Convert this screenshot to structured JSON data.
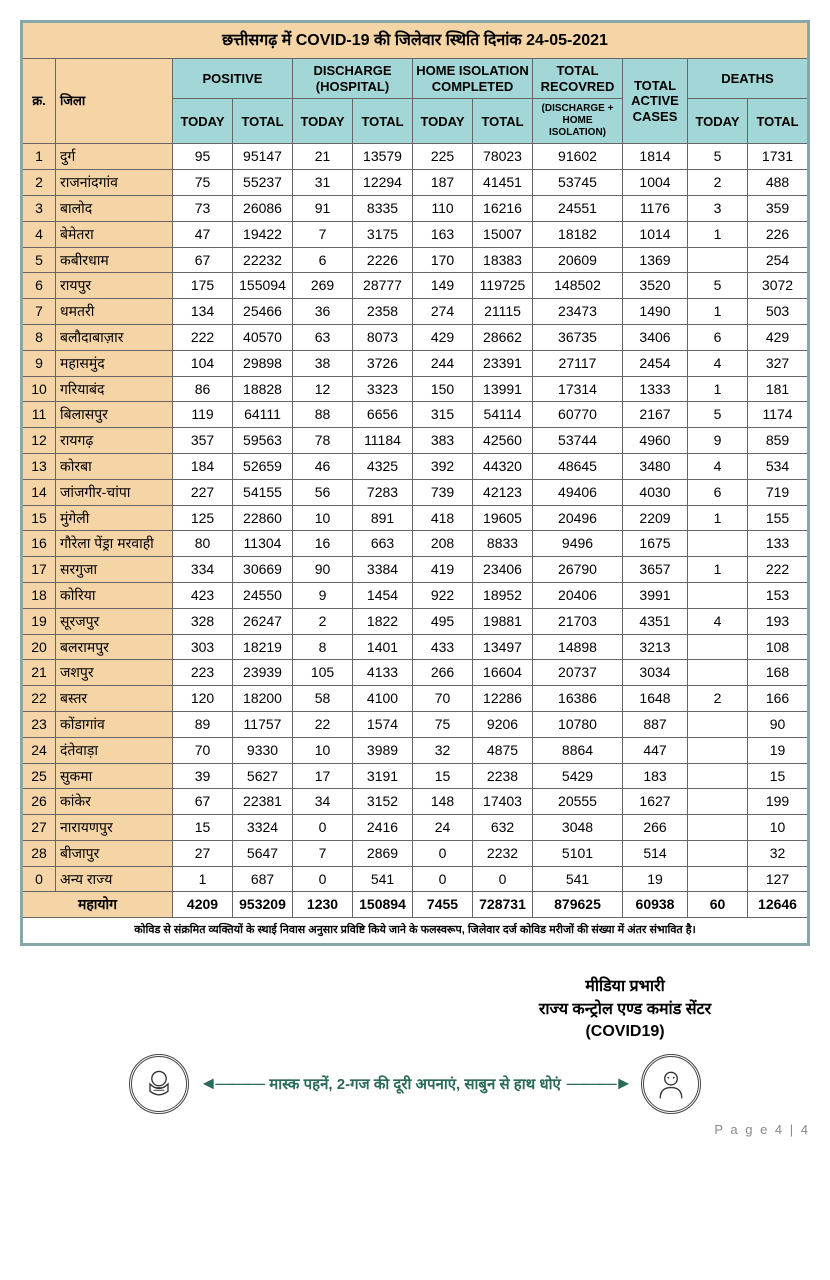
{
  "title": "छत्तीसगढ़ में COVID-19 की जिलेवार स्थिति दिनांक 24-05-2021",
  "headers": {
    "sn": "क्र.",
    "district": "जिला",
    "positive": "POSITIVE",
    "discharge": "DISCHARGE (HOSPITAL)",
    "homeiso": "HOME ISOLATION COMPLETED",
    "totrec": "TOTAL RECOVRED",
    "totrec_sub": "(DISCHARGE + HOME ISOLATION)",
    "active": "TOTAL ACTIVE CASES",
    "deaths": "DEATHS",
    "today": "TODAY",
    "total": "TOTAL"
  },
  "rows": [
    {
      "sn": "1",
      "dist": "दुर्ग",
      "pt": "95",
      "ptt": "95147",
      "dt": "21",
      "dtt": "13579",
      "ht": "225",
      "htt": "78023",
      "rec": "91602",
      "act": "1814",
      "det": "5",
      "dett": "1731"
    },
    {
      "sn": "2",
      "dist": "राजनांदगांव",
      "pt": "75",
      "ptt": "55237",
      "dt": "31",
      "dtt": "12294",
      "ht": "187",
      "htt": "41451",
      "rec": "53745",
      "act": "1004",
      "det": "2",
      "dett": "488"
    },
    {
      "sn": "3",
      "dist": "बालोद",
      "pt": "73",
      "ptt": "26086",
      "dt": "91",
      "dtt": "8335",
      "ht": "110",
      "htt": "16216",
      "rec": "24551",
      "act": "1176",
      "det": "3",
      "dett": "359"
    },
    {
      "sn": "4",
      "dist": "बेमेतरा",
      "pt": "47",
      "ptt": "19422",
      "dt": "7",
      "dtt": "3175",
      "ht": "163",
      "htt": "15007",
      "rec": "18182",
      "act": "1014",
      "det": "1",
      "dett": "226"
    },
    {
      "sn": "5",
      "dist": "कबीरधाम",
      "pt": "67",
      "ptt": "22232",
      "dt": "6",
      "dtt": "2226",
      "ht": "170",
      "htt": "18383",
      "rec": "20609",
      "act": "1369",
      "det": "",
      "dett": "254"
    },
    {
      "sn": "6",
      "dist": "रायपुर",
      "pt": "175",
      "ptt": "155094",
      "dt": "269",
      "dtt": "28777",
      "ht": "149",
      "htt": "119725",
      "rec": "148502",
      "act": "3520",
      "det": "5",
      "dett": "3072"
    },
    {
      "sn": "7",
      "dist": "धमतरी",
      "pt": "134",
      "ptt": "25466",
      "dt": "36",
      "dtt": "2358",
      "ht": "274",
      "htt": "21115",
      "rec": "23473",
      "act": "1490",
      "det": "1",
      "dett": "503"
    },
    {
      "sn": "8",
      "dist": "बलौदाबाज़ार",
      "pt": "222",
      "ptt": "40570",
      "dt": "63",
      "dtt": "8073",
      "ht": "429",
      "htt": "28662",
      "rec": "36735",
      "act": "3406",
      "det": "6",
      "dett": "429"
    },
    {
      "sn": "9",
      "dist": "महासमुंद",
      "pt": "104",
      "ptt": "29898",
      "dt": "38",
      "dtt": "3726",
      "ht": "244",
      "htt": "23391",
      "rec": "27117",
      "act": "2454",
      "det": "4",
      "dett": "327"
    },
    {
      "sn": "10",
      "dist": "गरियाबंद",
      "pt": "86",
      "ptt": "18828",
      "dt": "12",
      "dtt": "3323",
      "ht": "150",
      "htt": "13991",
      "rec": "17314",
      "act": "1333",
      "det": "1",
      "dett": "181"
    },
    {
      "sn": "11",
      "dist": "बिलासपुर",
      "pt": "119",
      "ptt": "64111",
      "dt": "88",
      "dtt": "6656",
      "ht": "315",
      "htt": "54114",
      "rec": "60770",
      "act": "2167",
      "det": "5",
      "dett": "1174"
    },
    {
      "sn": "12",
      "dist": "रायगढ़",
      "pt": "357",
      "ptt": "59563",
      "dt": "78",
      "dtt": "11184",
      "ht": "383",
      "htt": "42560",
      "rec": "53744",
      "act": "4960",
      "det": "9",
      "dett": "859"
    },
    {
      "sn": "13",
      "dist": "कोरबा",
      "pt": "184",
      "ptt": "52659",
      "dt": "46",
      "dtt": "4325",
      "ht": "392",
      "htt": "44320",
      "rec": "48645",
      "act": "3480",
      "det": "4",
      "dett": "534"
    },
    {
      "sn": "14",
      "dist": "जांजगीर-चांपा",
      "pt": "227",
      "ptt": "54155",
      "dt": "56",
      "dtt": "7283",
      "ht": "739",
      "htt": "42123",
      "rec": "49406",
      "act": "4030",
      "det": "6",
      "dett": "719"
    },
    {
      "sn": "15",
      "dist": "मुंगेली",
      "pt": "125",
      "ptt": "22860",
      "dt": "10",
      "dtt": "891",
      "ht": "418",
      "htt": "19605",
      "rec": "20496",
      "act": "2209",
      "det": "1",
      "dett": "155"
    },
    {
      "sn": "16",
      "dist": "गौरेला पेंड्रा मरवाही",
      "pt": "80",
      "ptt": "11304",
      "dt": "16",
      "dtt": "663",
      "ht": "208",
      "htt": "8833",
      "rec": "9496",
      "act": "1675",
      "det": "",
      "dett": "133"
    },
    {
      "sn": "17",
      "dist": "सरगुजा",
      "pt": "334",
      "ptt": "30669",
      "dt": "90",
      "dtt": "3384",
      "ht": "419",
      "htt": "23406",
      "rec": "26790",
      "act": "3657",
      "det": "1",
      "dett": "222"
    },
    {
      "sn": "18",
      "dist": "कोरिया",
      "pt": "423",
      "ptt": "24550",
      "dt": "9",
      "dtt": "1454",
      "ht": "922",
      "htt": "18952",
      "rec": "20406",
      "act": "3991",
      "det": "",
      "dett": "153"
    },
    {
      "sn": "19",
      "dist": "सूरजपुर",
      "pt": "328",
      "ptt": "26247",
      "dt": "2",
      "dtt": "1822",
      "ht": "495",
      "htt": "19881",
      "rec": "21703",
      "act": "4351",
      "det": "4",
      "dett": "193"
    },
    {
      "sn": "20",
      "dist": "बलरामपुर",
      "pt": "303",
      "ptt": "18219",
      "dt": "8",
      "dtt": "1401",
      "ht": "433",
      "htt": "13497",
      "rec": "14898",
      "act": "3213",
      "det": "",
      "dett": "108"
    },
    {
      "sn": "21",
      "dist": "जशपुर",
      "pt": "223",
      "ptt": "23939",
      "dt": "105",
      "dtt": "4133",
      "ht": "266",
      "htt": "16604",
      "rec": "20737",
      "act": "3034",
      "det": "",
      "dett": "168"
    },
    {
      "sn": "22",
      "dist": "बस्तर",
      "pt": "120",
      "ptt": "18200",
      "dt": "58",
      "dtt": "4100",
      "ht": "70",
      "htt": "12286",
      "rec": "16386",
      "act": "1648",
      "det": "2",
      "dett": "166"
    },
    {
      "sn": "23",
      "dist": "कोंडागांव",
      "pt": "89",
      "ptt": "11757",
      "dt": "22",
      "dtt": "1574",
      "ht": "75",
      "htt": "9206",
      "rec": "10780",
      "act": "887",
      "det": "",
      "dett": "90"
    },
    {
      "sn": "24",
      "dist": "दंतेवाड़ा",
      "pt": "70",
      "ptt": "9330",
      "dt": "10",
      "dtt": "3989",
      "ht": "32",
      "htt": "4875",
      "rec": "8864",
      "act": "447",
      "det": "",
      "dett": "19"
    },
    {
      "sn": "25",
      "dist": "सुकमा",
      "pt": "39",
      "ptt": "5627",
      "dt": "17",
      "dtt": "3191",
      "ht": "15",
      "htt": "2238",
      "rec": "5429",
      "act": "183",
      "det": "",
      "dett": "15"
    },
    {
      "sn": "26",
      "dist": "कांकेर",
      "pt": "67",
      "ptt": "22381",
      "dt": "34",
      "dtt": "3152",
      "ht": "148",
      "htt": "17403",
      "rec": "20555",
      "act": "1627",
      "det": "",
      "dett": "199"
    },
    {
      "sn": "27",
      "dist": "नारायणपुर",
      "pt": "15",
      "ptt": "3324",
      "dt": "0",
      "dtt": "2416",
      "ht": "24",
      "htt": "632",
      "rec": "3048",
      "act": "266",
      "det": "",
      "dett": "10"
    },
    {
      "sn": "28",
      "dist": "बीजापुर",
      "pt": "27",
      "ptt": "5647",
      "dt": "7",
      "dtt": "2869",
      "ht": "0",
      "htt": "2232",
      "rec": "5101",
      "act": "514",
      "det": "",
      "dett": "32"
    },
    {
      "sn": "0",
      "dist": "अन्य राज्य",
      "pt": "1",
      "ptt": "687",
      "dt": "0",
      "dtt": "541",
      "ht": "0",
      "htt": "0",
      "rec": "541",
      "act": "19",
      "det": "",
      "dett": "127"
    }
  ],
  "total_label": "महायोग",
  "totals": {
    "pt": "4209",
    "ptt": "953209",
    "dt": "1230",
    "dtt": "150894",
    "ht": "7455",
    "htt": "728731",
    "rec": "879625",
    "act": "60938",
    "det": "60",
    "dett": "12646"
  },
  "note": "कोविड से संक्रमित व्यक्तियों के स्थाई निवास अनुसार प्रविष्टि किये जाने के फलस्वरूप, जिलेवार दर्ज कोविड मरीजों की संख्या में अंतर संभावित है।",
  "footer": {
    "l1": "मीडिया प्रभारी",
    "l2": "राज्य कन्ट्रोल एण्ड कमांड सेंटर",
    "l3": "(COVID19)",
    "banner": "मास्क पहनें, 2-गज की दूरी अपनाएं, साबुन से हाथ धोएं",
    "page": "P a g e 4 | 4"
  },
  "colors": {
    "peach": "#f5d4a6",
    "green": "#a3d6d6",
    "border": "#87a8a8",
    "banner_text": "#2a6a5a"
  }
}
